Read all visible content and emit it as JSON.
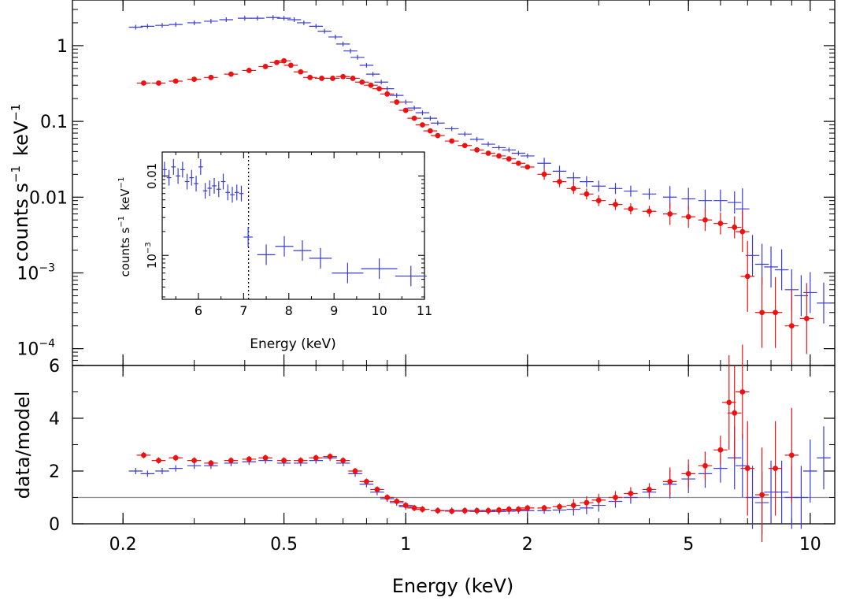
{
  "colors": {
    "blue": "#3a3ad8",
    "red": "#ee1111",
    "axis": "#000000",
    "refline": "#888888",
    "marker_line": "#000000"
  },
  "chart_data": [
    {
      "id": "spectrum",
      "type": "scatter",
      "xscale": "log",
      "yscale": "log",
      "xlim": [
        0.15,
        11.5
      ],
      "ylim": [
        6e-05,
        4
      ],
      "ylabel_main": "counts s",
      "ylabel_exp": "−1",
      "ylabel_unit": "keV",
      "ylabel_unit_exp": "−1",
      "yticks": [
        {
          "v": 1,
          "base": "1",
          "exp": ""
        },
        {
          "v": 0.1,
          "base": "0.1",
          "exp": ""
        },
        {
          "v": 0.01,
          "base": "0.01",
          "exp": ""
        },
        {
          "v": 0.001,
          "base": "10",
          "exp": "−3"
        },
        {
          "v": 0.0001,
          "base": "10",
          "exp": "−4"
        }
      ],
      "series": [
        {
          "color": "blue",
          "marker": "cross",
          "x": [
            0.215,
            0.23,
            0.25,
            0.27,
            0.3,
            0.33,
            0.36,
            0.4,
            0.43,
            0.47,
            0.5,
            0.53,
            0.56,
            0.6,
            0.63,
            0.67,
            0.7,
            0.73,
            0.76,
            0.8,
            0.83,
            0.87,
            0.9,
            0.95,
            1.0,
            1.05,
            1.1,
            1.15,
            1.2,
            1.3,
            1.4,
            1.5,
            1.6,
            1.7,
            1.8,
            1.9,
            2.0,
            2.2,
            2.4,
            2.6,
            2.8,
            3.0,
            3.3,
            3.6,
            4.0,
            4.5,
            5.0,
            5.5,
            6.0,
            6.5,
            6.8,
            7.2,
            7.6,
            8.0,
            8.5,
            9.0,
            9.5,
            10.0,
            10.8
          ],
          "y": [
            1.75,
            1.8,
            1.85,
            1.9,
            2.0,
            2.1,
            2.2,
            2.3,
            2.3,
            2.35,
            2.3,
            2.2,
            2.0,
            1.8,
            1.55,
            1.3,
            1.05,
            0.85,
            0.7,
            0.55,
            0.42,
            0.33,
            0.27,
            0.22,
            0.18,
            0.15,
            0.13,
            0.11,
            0.095,
            0.08,
            0.068,
            0.058,
            0.05,
            0.045,
            0.042,
            0.038,
            0.035,
            0.028,
            0.022,
            0.018,
            0.016,
            0.014,
            0.013,
            0.012,
            0.011,
            0.01,
            0.0095,
            0.009,
            0.009,
            0.0085,
            0.007,
            0.0017,
            0.0013,
            0.0012,
            0.0011,
            0.0006,
            0.0005,
            0.00055,
            0.0004
          ]
        },
        {
          "color": "red",
          "marker": "dot",
          "x": [
            0.225,
            0.245,
            0.27,
            0.3,
            0.33,
            0.37,
            0.41,
            0.45,
            0.48,
            0.5,
            0.52,
            0.55,
            0.58,
            0.62,
            0.66,
            0.7,
            0.74,
            0.78,
            0.82,
            0.86,
            0.9,
            0.95,
            1.0,
            1.05,
            1.1,
            1.15,
            1.2,
            1.3,
            1.4,
            1.5,
            1.6,
            1.7,
            1.8,
            1.9,
            2.0,
            2.2,
            2.4,
            2.6,
            2.8,
            3.0,
            3.3,
            3.6,
            4.0,
            4.5,
            5.0,
            5.5,
            6.0,
            6.5,
            6.8,
            7.0,
            7.6,
            8.2,
            9.0,
            9.8
          ],
          "y": [
            0.32,
            0.32,
            0.34,
            0.36,
            0.38,
            0.42,
            0.47,
            0.53,
            0.6,
            0.63,
            0.55,
            0.45,
            0.38,
            0.37,
            0.37,
            0.39,
            0.37,
            0.33,
            0.3,
            0.27,
            0.23,
            0.18,
            0.14,
            0.11,
            0.09,
            0.075,
            0.065,
            0.055,
            0.048,
            0.042,
            0.038,
            0.035,
            0.032,
            0.028,
            0.025,
            0.02,
            0.016,
            0.013,
            0.011,
            0.009,
            0.008,
            0.007,
            0.0065,
            0.006,
            0.0055,
            0.005,
            0.0045,
            0.004,
            0.0035,
            0.0009,
            0.0003,
            0.0003,
            0.0002,
            0.00025
          ]
        }
      ]
    },
    {
      "id": "ratio",
      "type": "scatter",
      "xscale": "log",
      "xlim": [
        0.15,
        11.5
      ],
      "ylim": [
        0,
        6
      ],
      "ylabel": "data/model",
      "yticks": [
        0,
        2,
        4,
        6
      ],
      "xlabel": "Energy (keV)",
      "xticks": [
        {
          "v": 0.2,
          "label": "0.2"
        },
        {
          "v": 0.5,
          "label": "0.5"
        },
        {
          "v": 1,
          "label": "1"
        },
        {
          "v": 2,
          "label": "2"
        },
        {
          "v": 5,
          "label": "5"
        },
        {
          "v": 10,
          "label": "10"
        }
      ],
      "reference_line": 1,
      "series": [
        {
          "color": "blue",
          "marker": "cross",
          "x": [
            0.215,
            0.23,
            0.25,
            0.27,
            0.3,
            0.33,
            0.37,
            0.41,
            0.45,
            0.5,
            0.55,
            0.6,
            0.65,
            0.7,
            0.75,
            0.8,
            0.85,
            0.9,
            0.95,
            1.0,
            1.05,
            1.1,
            1.2,
            1.3,
            1.4,
            1.5,
            1.6,
            1.7,
            1.8,
            1.9,
            2.0,
            2.2,
            2.4,
            2.6,
            2.8,
            3.0,
            3.3,
            3.6,
            4.0,
            4.5,
            5.0,
            5.5,
            6.0,
            6.5,
            6.8,
            7.2,
            7.6,
            8.0,
            8.5,
            9.0,
            9.5,
            10.0,
            10.8
          ],
          "y": [
            2.0,
            1.9,
            2.0,
            2.1,
            2.2,
            2.2,
            2.3,
            2.35,
            2.4,
            2.3,
            2.3,
            2.4,
            2.5,
            2.3,
            1.9,
            1.5,
            1.2,
            0.95,
            0.8,
            0.65,
            0.6,
            0.55,
            0.5,
            0.5,
            0.48,
            0.47,
            0.47,
            0.47,
            0.48,
            0.5,
            0.5,
            0.5,
            0.52,
            0.55,
            0.6,
            0.7,
            0.85,
            1.0,
            1.2,
            1.5,
            1.7,
            1.9,
            2.1,
            2.5,
            2.2,
            1.0,
            0.8,
            1.2,
            1.2,
            1.0,
            1.0,
            2.0,
            2.5
          ]
        },
        {
          "color": "red",
          "marker": "dot",
          "x": [
            0.225,
            0.245,
            0.27,
            0.3,
            0.33,
            0.37,
            0.41,
            0.45,
            0.5,
            0.55,
            0.6,
            0.65,
            0.7,
            0.75,
            0.8,
            0.85,
            0.9,
            0.95,
            1.0,
            1.05,
            1.1,
            1.2,
            1.3,
            1.4,
            1.5,
            1.6,
            1.7,
            1.8,
            1.9,
            2.0,
            2.2,
            2.4,
            2.6,
            2.8,
            3.0,
            3.3,
            3.6,
            4.0,
            4.5,
            5.0,
            5.5,
            6.0,
            6.3,
            6.5,
            6.8,
            7.0,
            7.6,
            8.2,
            9.0
          ],
          "y": [
            2.6,
            2.4,
            2.5,
            2.4,
            2.3,
            2.4,
            2.45,
            2.5,
            2.4,
            2.4,
            2.5,
            2.55,
            2.4,
            2.0,
            1.6,
            1.3,
            1.0,
            0.85,
            0.7,
            0.6,
            0.55,
            0.5,
            0.48,
            0.5,
            0.5,
            0.5,
            0.52,
            0.55,
            0.55,
            0.6,
            0.6,
            0.65,
            0.7,
            0.8,
            0.9,
            1.0,
            1.15,
            1.3,
            1.6,
            1.9,
            2.2,
            2.8,
            4.6,
            4.2,
            5.0,
            2.1,
            1.1,
            2.1,
            2.6
          ]
        }
      ]
    },
    {
      "id": "inset",
      "type": "scatter",
      "yscale": "log",
      "xlim": [
        5.2,
        11
      ],
      "ylim": [
        0.00028,
        0.02
      ],
      "xlabel": "Energy (keV)",
      "ylabel_main": "counts s",
      "ylabel_exp": "−1",
      "ylabel_unit": "keV",
      "ylabel_unit_exp": "−1",
      "xticks": [
        {
          "v": 6,
          "label": "6"
        },
        {
          "v": 7,
          "label": "7"
        },
        {
          "v": 8,
          "label": "8"
        },
        {
          "v": 9,
          "label": "9"
        },
        {
          "v": 10,
          "label": "10"
        },
        {
          "v": 11,
          "label": "11"
        }
      ],
      "yticks": [
        {
          "v": 0.01,
          "base": "0.01",
          "exp": ""
        },
        {
          "v": 0.001,
          "base": "10",
          "exp": "−3"
        }
      ],
      "vline": 7.11,
      "series": [
        {
          "color": "blue",
          "marker": "cross",
          "x": [
            5.25,
            5.35,
            5.45,
            5.55,
            5.65,
            5.75,
            5.85,
            5.95,
            6.05,
            6.15,
            6.25,
            6.35,
            6.45,
            6.55,
            6.65,
            6.75,
            6.85,
            6.95,
            7.1,
            7.5,
            7.9,
            8.3,
            8.7,
            9.3,
            10.0,
            10.7
          ],
          "y": [
            0.012,
            0.0095,
            0.013,
            0.01,
            0.012,
            0.0085,
            0.0095,
            0.008,
            0.013,
            0.0065,
            0.007,
            0.0075,
            0.0068,
            0.0085,
            0.0062,
            0.0058,
            0.0062,
            0.006,
            0.0017,
            0.00102,
            0.0013,
            0.00115,
            0.00092,
            0.0006,
            0.00068,
            0.00055
          ],
          "xerr": [
            0.05,
            0.05,
            0.05,
            0.05,
            0.05,
            0.05,
            0.05,
            0.05,
            0.05,
            0.05,
            0.05,
            0.05,
            0.05,
            0.05,
            0.05,
            0.05,
            0.05,
            0.05,
            0.1,
            0.2,
            0.2,
            0.2,
            0.25,
            0.35,
            0.4,
            0.35
          ]
        }
      ]
    }
  ]
}
